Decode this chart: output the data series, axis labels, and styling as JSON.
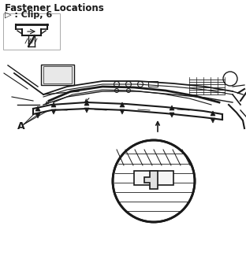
{
  "title": "Fastener Locations",
  "clip_label": "▷ : Clip, 6",
  "label_A": "A",
  "bg_color": "#ffffff",
  "line_color": "#1a1a1a",
  "gray_color": "#888888",
  "light_gray": "#cccccc",
  "title_fontsize": 8.5,
  "clip_label_fontsize": 8,
  "figsize": [
    3.12,
    3.48
  ],
  "dpi": 100
}
